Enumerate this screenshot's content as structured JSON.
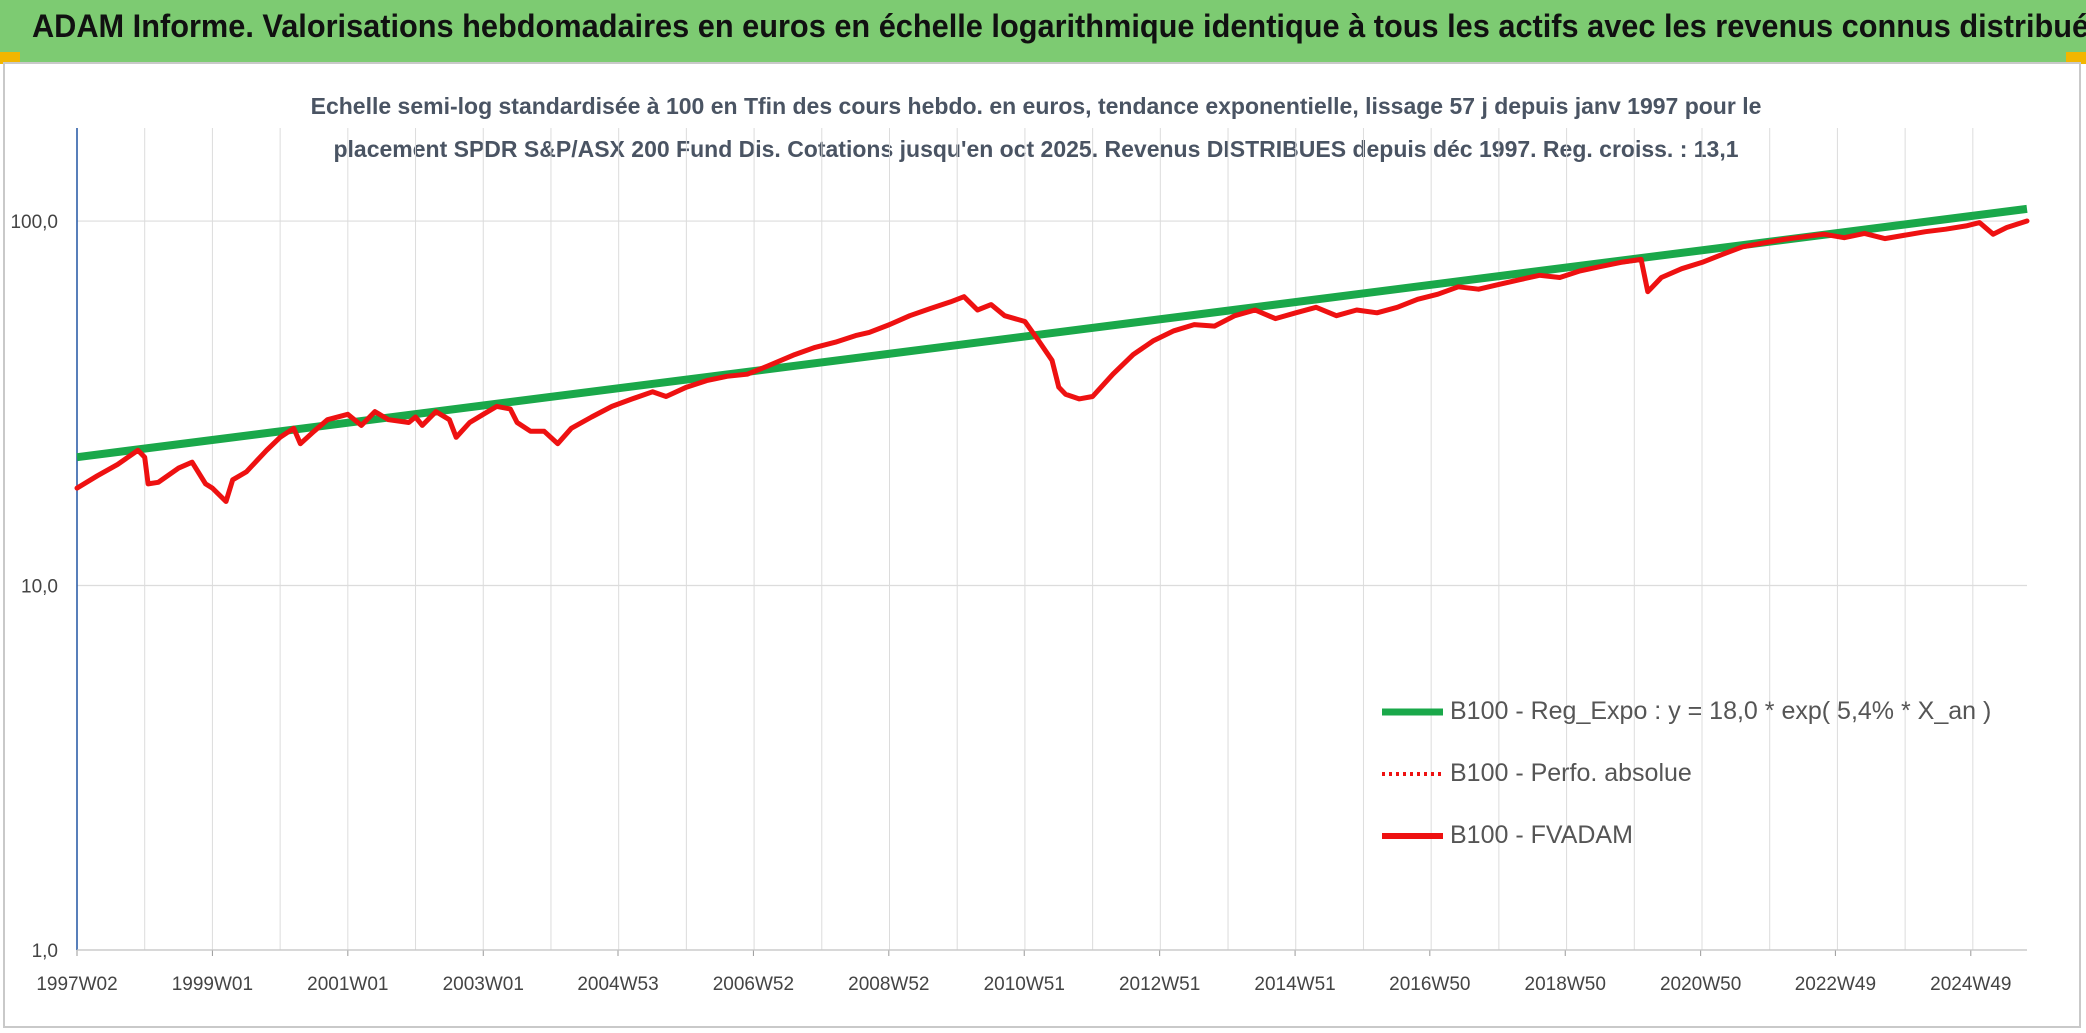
{
  "header": {
    "title": "ADAM Informe. Valorisations hebdomadaires en euros en échelle logarithmique identique à tous les actifs avec les revenus connus distribués"
  },
  "colors": {
    "banner": "#7dcb72",
    "trend": "#1aa84a",
    "series": "#ee1111",
    "grid": "#dcdcdc",
    "axis": "#2e5fa8"
  },
  "chart_data": {
    "type": "line",
    "subtitle_lines": [
      "Echelle semi-log standardisée à 100 en Tfin des cours hebdo. en euros, tendance exponentielle, lissage 57 j depuis janv 1997 pour le",
      "placement SPDR S&P/ASX 200 Fund Dis. Cotations jusqu'en oct 2025. Revenus DISTRIBUES depuis déc 1997. Reg. croiss. : 13,1"
    ],
    "y_scale": "log",
    "ylim": [
      1,
      180
    ],
    "xlim": [
      1997.0,
      2025.8
    ],
    "grid": true,
    "legend_position": "bottom-right",
    "y_ticks": [
      {
        "value": 100,
        "label": "100,0"
      },
      {
        "value": 10,
        "label": "10,0"
      },
      {
        "value": 1,
        "label": "1,0"
      }
    ],
    "x_ticks": [
      {
        "t": 1997.0,
        "label": "1997W02"
      },
      {
        "t": 1999.0,
        "label": "1999W01"
      },
      {
        "t": 2001.0,
        "label": "2001W01"
      },
      {
        "t": 2003.0,
        "label": "2003W01"
      },
      {
        "t": 2004.99,
        "label": "2004W53"
      },
      {
        "t": 2006.99,
        "label": "2006W52"
      },
      {
        "t": 2008.99,
        "label": "2008W52"
      },
      {
        "t": 2010.99,
        "label": "2010W51"
      },
      {
        "t": 2012.99,
        "label": "2012W51"
      },
      {
        "t": 2014.99,
        "label": "2014W51"
      },
      {
        "t": 2016.98,
        "label": "2016W50"
      },
      {
        "t": 2018.98,
        "label": "2018W50"
      },
      {
        "t": 2020.98,
        "label": "2020W50"
      },
      {
        "t": 2022.97,
        "label": "2022W49"
      },
      {
        "t": 2024.97,
        "label": "2024W49"
      }
    ],
    "series": [
      {
        "name": "B100 - Reg_Expo : y = 18,0 * exp( 5,4% *  X_an )",
        "style": "solid-thick",
        "color": "#1aa84a",
        "points": [
          [
            1997.0,
            22.5
          ],
          [
            2025.8,
            108.0
          ]
        ]
      },
      {
        "name": "B100 - Perfo. absolue",
        "style": "dotted",
        "color": "#ee1111",
        "points": []
      },
      {
        "name": "B100 - FVADAM",
        "style": "solid",
        "color": "#ee1111",
        "points": [
          [
            1997.0,
            18.5
          ],
          [
            1997.3,
            20.0
          ],
          [
            1997.6,
            21.5
          ],
          [
            1997.9,
            23.5
          ],
          [
            1998.0,
            22.5
          ],
          [
            1998.05,
            19.0
          ],
          [
            1998.2,
            19.2
          ],
          [
            1998.5,
            21.0
          ],
          [
            1998.7,
            21.8
          ],
          [
            1998.9,
            19.0
          ],
          [
            1999.0,
            18.5
          ],
          [
            1999.2,
            17.0
          ],
          [
            1999.3,
            19.5
          ],
          [
            1999.5,
            20.5
          ],
          [
            1999.8,
            23.5
          ],
          [
            2000.0,
            25.5
          ],
          [
            2000.2,
            27.0
          ],
          [
            2000.3,
            24.5
          ],
          [
            2000.5,
            26.5
          ],
          [
            2000.7,
            28.5
          ],
          [
            2001.0,
            29.5
          ],
          [
            2001.2,
            27.5
          ],
          [
            2001.4,
            30.0
          ],
          [
            2001.6,
            28.5
          ],
          [
            2001.9,
            28.0
          ],
          [
            2002.0,
            29.0
          ],
          [
            2002.1,
            27.5
          ],
          [
            2002.3,
            30.0
          ],
          [
            2002.5,
            28.5
          ],
          [
            2002.6,
            25.5
          ],
          [
            2002.8,
            28.0
          ],
          [
            2003.0,
            29.5
          ],
          [
            2003.2,
            31.0
          ],
          [
            2003.4,
            30.5
          ],
          [
            2003.5,
            28.0
          ],
          [
            2003.7,
            26.5
          ],
          [
            2003.9,
            26.5
          ],
          [
            2004.1,
            24.5
          ],
          [
            2004.3,
            27.0
          ],
          [
            2004.6,
            29.0
          ],
          [
            2004.9,
            31.0
          ],
          [
            2005.2,
            32.5
          ],
          [
            2005.5,
            34.0
          ],
          [
            2005.7,
            33.0
          ],
          [
            2006.0,
            35.0
          ],
          [
            2006.3,
            36.5
          ],
          [
            2006.6,
            37.5
          ],
          [
            2006.9,
            38.0
          ],
          [
            2007.2,
            40.0
          ],
          [
            2007.6,
            43.0
          ],
          [
            2007.9,
            45.0
          ],
          [
            2008.2,
            46.5
          ],
          [
            2008.5,
            48.5
          ],
          [
            2008.7,
            49.5
          ],
          [
            2009.0,
            52.0
          ],
          [
            2009.3,
            55.0
          ],
          [
            2009.6,
            57.5
          ],
          [
            2009.9,
            60.0
          ],
          [
            2010.1,
            62.0
          ],
          [
            2010.3,
            57.0
          ],
          [
            2010.5,
            59.0
          ],
          [
            2010.7,
            55.0
          ],
          [
            2011.0,
            53.0
          ],
          [
            2011.2,
            47.0
          ],
          [
            2011.4,
            41.5
          ],
          [
            2011.5,
            35.0
          ],
          [
            2011.6,
            33.5
          ],
          [
            2011.8,
            32.5
          ],
          [
            2012.0,
            33.0
          ],
          [
            2012.3,
            38.0
          ],
          [
            2012.6,
            43.0
          ],
          [
            2012.9,
            47.0
          ],
          [
            2013.2,
            50.0
          ],
          [
            2013.5,
            52.0
          ],
          [
            2013.8,
            51.5
          ],
          [
            2014.1,
            55.0
          ],
          [
            2014.4,
            57.0
          ],
          [
            2014.7,
            54.0
          ],
          [
            2015.0,
            56.0
          ],
          [
            2015.3,
            58.0
          ],
          [
            2015.6,
            55.0
          ],
          [
            2015.9,
            57.0
          ],
          [
            2016.2,
            56.0
          ],
          [
            2016.5,
            58.0
          ],
          [
            2016.8,
            61.0
          ],
          [
            2017.1,
            63.0
          ],
          [
            2017.4,
            66.0
          ],
          [
            2017.7,
            65.0
          ],
          [
            2018.0,
            67.0
          ],
          [
            2018.3,
            69.0
          ],
          [
            2018.6,
            71.0
          ],
          [
            2018.9,
            70.0
          ],
          [
            2019.2,
            73.0
          ],
          [
            2019.5,
            75.0
          ],
          [
            2019.8,
            77.0
          ],
          [
            2020.1,
            78.5
          ],
          [
            2020.2,
            64.0
          ],
          [
            2020.4,
            70.0
          ],
          [
            2020.7,
            74.0
          ],
          [
            2021.0,
            77.0
          ],
          [
            2021.3,
            81.0
          ],
          [
            2021.6,
            85.0
          ],
          [
            2021.9,
            87.0
          ],
          [
            2022.2,
            89.0
          ],
          [
            2022.5,
            90.5
          ],
          [
            2022.8,
            92.0
          ],
          [
            2023.1,
            90.0
          ],
          [
            2023.4,
            92.5
          ],
          [
            2023.7,
            89.5
          ],
          [
            2024.0,
            91.5
          ],
          [
            2024.3,
            93.5
          ],
          [
            2024.6,
            95.0
          ],
          [
            2024.9,
            97.0
          ],
          [
            2025.1,
            99.0
          ],
          [
            2025.3,
            92.0
          ],
          [
            2025.5,
            96.0
          ],
          [
            2025.8,
            100.0
          ]
        ]
      }
    ]
  }
}
